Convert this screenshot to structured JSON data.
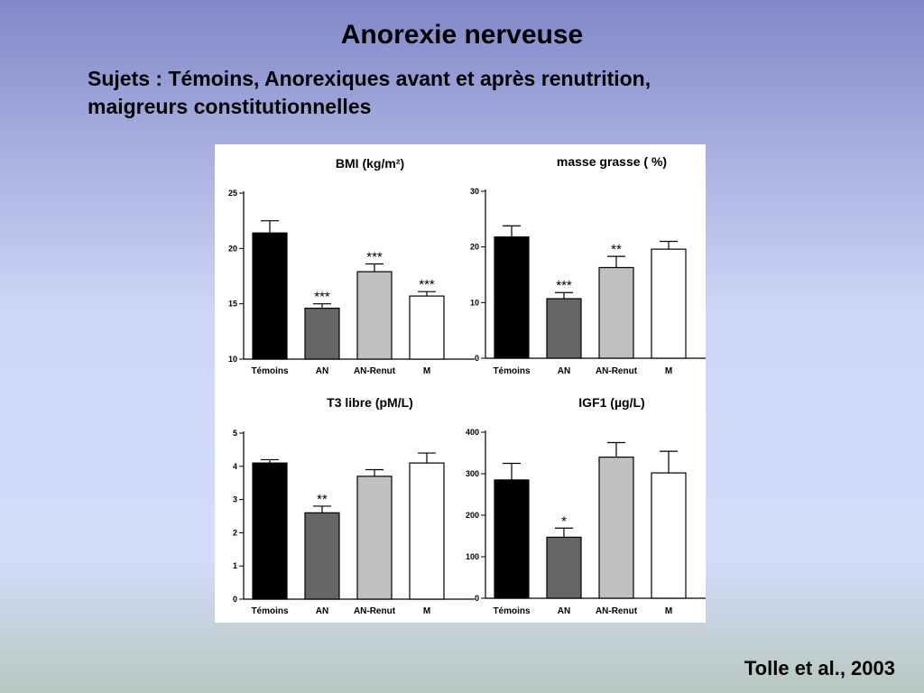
{
  "slide": {
    "title": "Anorexie nerveuse",
    "subtitle_line1": "Sujets : Témoins, Anorexiques avant et après renutrition,",
    "subtitle_line2": "maigreurs constitutionnelles",
    "citation": "Tolle et al., 2003"
  },
  "colors": {
    "Témoins": "#000000",
    "AN": "#666666",
    "AN-Renut": "#c0c0c0",
    "M": "#ffffff"
  },
  "chart_data": [
    {
      "type": "bar",
      "title": "BMI (kg/m²)",
      "categories": [
        "Témoins",
        "AN",
        "AN-Renut",
        "M"
      ],
      "values": [
        21.4,
        14.6,
        17.9,
        15.7
      ],
      "errors": [
        1.1,
        0.4,
        0.7,
        0.4
      ],
      "significance": [
        "",
        "***",
        "***",
        "***"
      ],
      "ylim": [
        10,
        25
      ],
      "yticks": [
        10,
        15,
        20,
        25
      ]
    },
    {
      "type": "bar",
      "title": "masse grasse ( %)",
      "categories": [
        "Témoins",
        "AN",
        "AN-Renut",
        "M"
      ],
      "values": [
        21.8,
        10.7,
        16.3,
        19.6
      ],
      "errors": [
        2.0,
        1.1,
        2.0,
        1.4
      ],
      "significance": [
        "",
        "***",
        "**",
        ""
      ],
      "ylim": [
        0,
        30
      ],
      "yticks": [
        0,
        10,
        20,
        30
      ]
    },
    {
      "type": "bar",
      "title": "T3 libre (pM/L)",
      "categories": [
        "Témoins",
        "AN",
        "AN-Renut",
        "M"
      ],
      "values": [
        4.1,
        2.6,
        3.7,
        4.1
      ],
      "errors": [
        0.1,
        0.2,
        0.2,
        0.3
      ],
      "significance": [
        "",
        "**",
        "",
        ""
      ],
      "ylim": [
        0,
        5
      ],
      "yticks": [
        0,
        1,
        2,
        3,
        4,
        5
      ]
    },
    {
      "type": "bar",
      "title": "IGF1 (µg/L)",
      "categories": [
        "Témoins",
        "AN",
        "AN-Renut",
        "M"
      ],
      "values": [
        285,
        147,
        340,
        302
      ],
      "errors": [
        40,
        22,
        35,
        52
      ],
      "significance": [
        "",
        "*",
        "",
        ""
      ],
      "ylim": [
        0,
        400
      ],
      "yticks": [
        0,
        100,
        200,
        300,
        400
      ]
    }
  ]
}
